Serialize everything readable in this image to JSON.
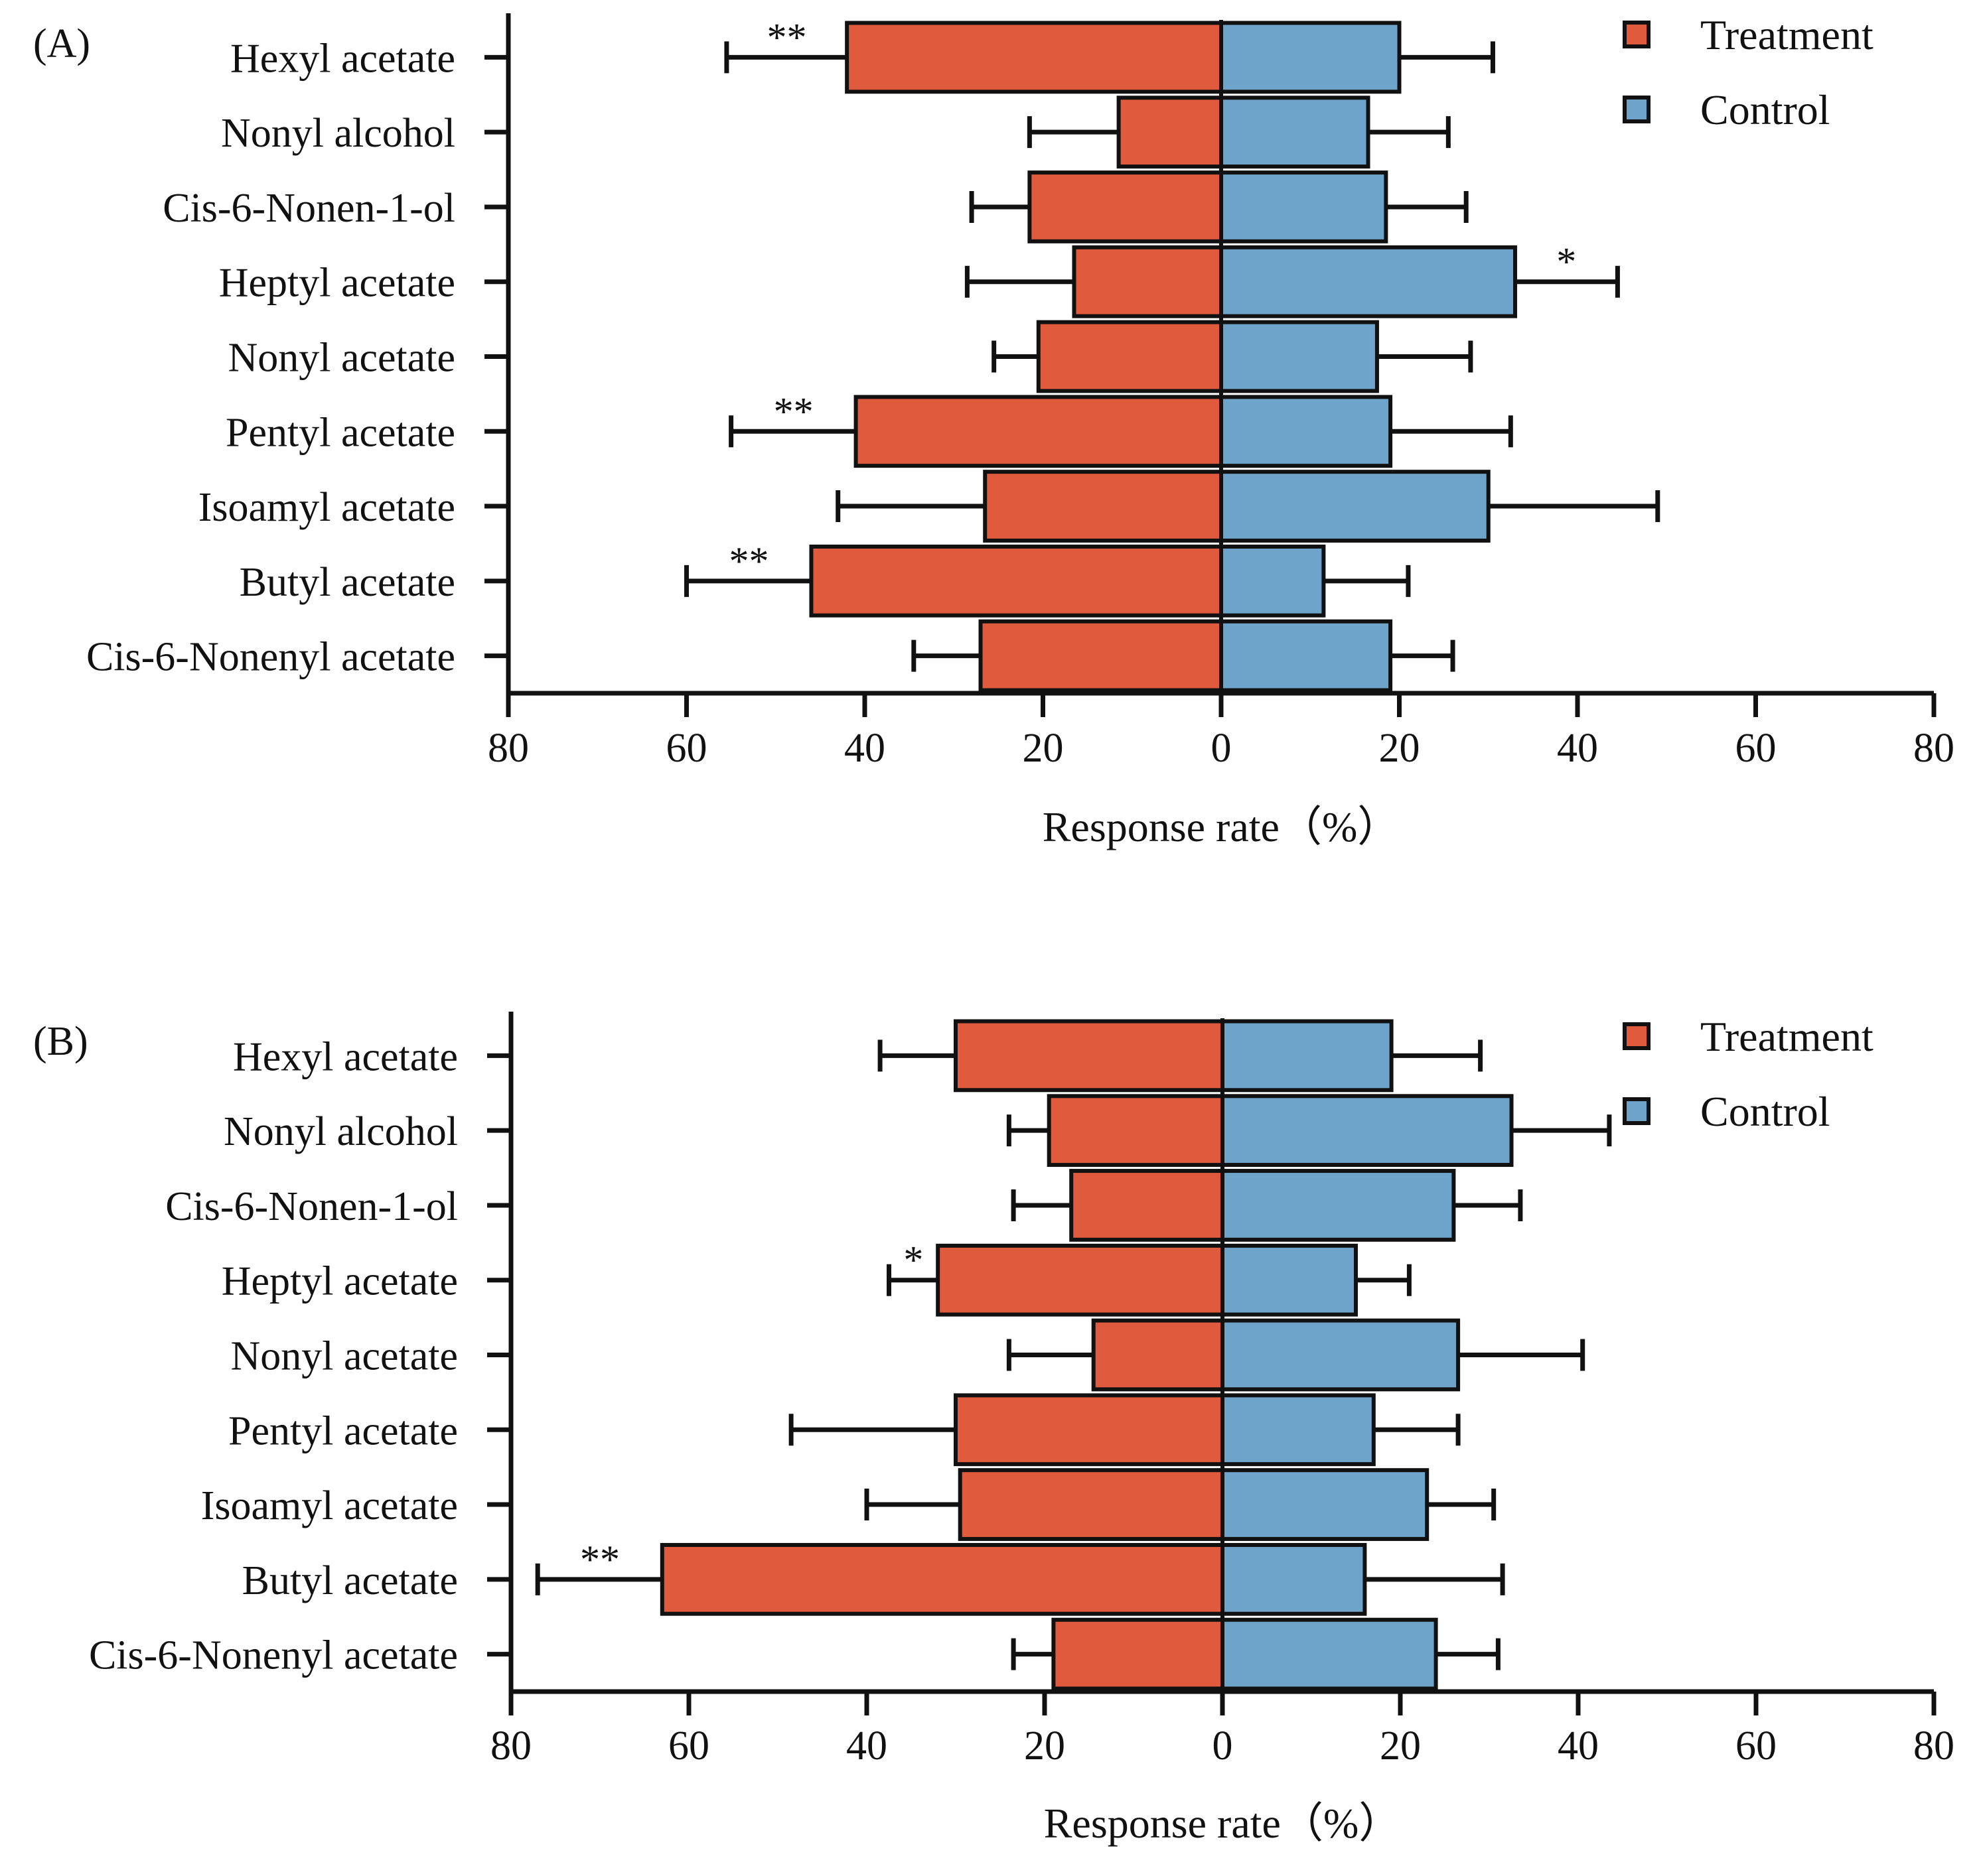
{
  "colors": {
    "treatment": "#e05a3e",
    "control": "#6fa4ca",
    "axis": "#111111"
  },
  "chart_data": [
    {
      "type": "bar",
      "panel_label": "(A)",
      "orientation": "horizontal-back-to-back",
      "xlabel": "Response rate（%）",
      "xlim": [
        -80,
        80
      ],
      "tick_values": [
        -80,
        -60,
        -40,
        -20,
        0,
        20,
        40,
        60,
        80
      ],
      "tick_labels": [
        "80",
        "60",
        "40",
        "20",
        "0",
        "20",
        "40",
        "60",
        "80"
      ],
      "legend": [
        "Treatment",
        "Control"
      ],
      "legend_position": "top-right",
      "categories": [
        "Hexyl acetate",
        "Nonyl alcohol",
        "Cis-6-Nonen-1-ol",
        "Heptyl acetate",
        "Nonyl acetate",
        "Pentyl acetate",
        "Isoamyl acetate",
        "Butyl acetate",
        "Cis-6-Nonenyl acetate"
      ],
      "series": [
        {
          "name": "Treatment",
          "values": [
            42,
            11.5,
            21.5,
            16.5,
            20.5,
            41,
            26.5,
            46,
            27
          ],
          "error": [
            13.5,
            10,
            6.5,
            12,
            5,
            14,
            16.5,
            14,
            7.5
          ],
          "significance": [
            "**",
            "",
            "",
            "",
            "",
            "**",
            "",
            "**",
            ""
          ]
        },
        {
          "name": "Control",
          "values": [
            20,
            16.5,
            18.5,
            33,
            17.5,
            19,
            30,
            11.5,
            19
          ],
          "error": [
            10.5,
            9,
            9,
            11.5,
            10.5,
            13.5,
            19,
            9.5,
            7
          ],
          "significance": [
            "",
            "",
            "",
            "*",
            "",
            "",
            "",
            "",
            ""
          ]
        }
      ]
    },
    {
      "type": "bar",
      "panel_label": "(B)",
      "orientation": "horizontal-back-to-back",
      "xlabel": "Response rate（%）",
      "xlim": [
        -80,
        80
      ],
      "tick_values": [
        -80,
        -60,
        -40,
        -20,
        0,
        20,
        40,
        60,
        80
      ],
      "tick_labels": [
        "80",
        "60",
        "40",
        "20",
        "0",
        "20",
        "40",
        "60",
        "80"
      ],
      "legend": [
        "Treatment",
        "Control"
      ],
      "legend_position": "top-right",
      "categories": [
        "Hexyl acetate",
        "Nonyl alcohol",
        "Cis-6-Nonen-1-ol",
        "Heptyl acetate",
        "Nonyl acetate",
        "Pentyl acetate",
        "Isoamyl acetate",
        "Butyl acetate",
        "Cis-6-Nonenyl acetate"
      ],
      "series": [
        {
          "name": "Treatment",
          "values": [
            30,
            19.5,
            17,
            32,
            14.5,
            30,
            29.5,
            63,
            19
          ],
          "error": [
            8.5,
            4.5,
            6.5,
            5.5,
            9.5,
            18.5,
            10.5,
            14,
            4.5
          ],
          "significance": [
            "",
            "",
            "",
            "*",
            "",
            "",
            "",
            "**",
            ""
          ]
        },
        {
          "name": "Control",
          "values": [
            19,
            32.5,
            26,
            15,
            26.5,
            17,
            23,
            16,
            24
          ],
          "error": [
            10,
            11,
            7.5,
            6,
            14,
            9.5,
            7.5,
            15.5,
            7
          ],
          "significance": [
            "",
            "",
            "",
            "",
            "",
            "",
            "",
            "",
            ""
          ]
        }
      ]
    }
  ]
}
